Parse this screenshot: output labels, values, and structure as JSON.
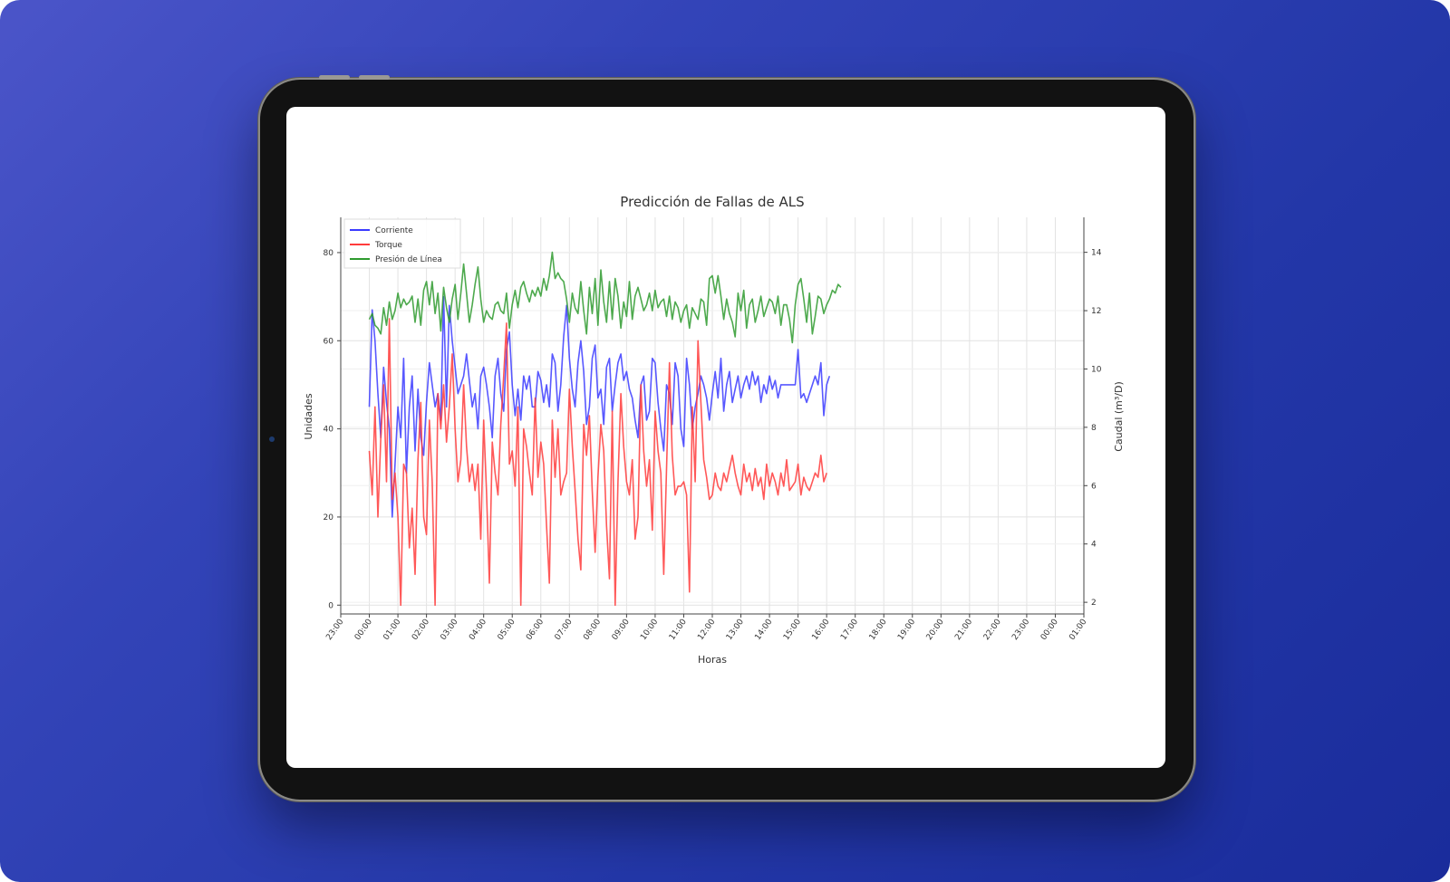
{
  "chart_data": {
    "type": "line",
    "title": "Predicción de Fallas de ALS",
    "xlabel": "Horas",
    "ylabel_left": "Unidades",
    "ylabel_right": "Caudal (m³/D)",
    "x_ticks": [
      "23:00",
      "00:00",
      "01:00",
      "02:00",
      "03:00",
      "04:00",
      "05:00",
      "06:00",
      "07:00",
      "08:00",
      "09:00",
      "10:00",
      "11:00",
      "12:00",
      "13:00",
      "14:00",
      "15:00",
      "16:00",
      "17:00",
      "18:00",
      "19:00",
      "20:00",
      "21:00",
      "22:00",
      "23:00",
      "00:00",
      "01:00"
    ],
    "x_tick_labels": [
      "23:00",
      "00:00",
      "01:00",
      "02:00",
      "03:00",
      "04:00",
      "05:00",
      "06:00",
      "07:00",
      "08:00",
      "09:00",
      "10:00",
      "11:00",
      "12:00",
      "13:00",
      "14:00",
      "15:00",
      "16:00",
      "17:00",
      "18:00",
      "19:00",
      "20:00",
      "21:00",
      "22:00",
      "23:00",
      "00:00",
      "01:00"
    ],
    "ylim_left": [
      -2,
      88
    ],
    "yticks_left": [
      0,
      20,
      40,
      60,
      80
    ],
    "ylim_right": [
      1.6,
      15.2
    ],
    "yticks_right": [
      2,
      4,
      6,
      8,
      10,
      12,
      14
    ],
    "grid": true,
    "legend_position": "top-left",
    "series": [
      {
        "name": "Corriente",
        "color": "#3b3bff",
        "axis": "left",
        "x_start_hour": 1.0,
        "x_step_hour": 0.1,
        "values": [
          45,
          67,
          60,
          48,
          38,
          54,
          46,
          40,
          20,
          32,
          45,
          38,
          56,
          30,
          45,
          52,
          35,
          49,
          38,
          34,
          46,
          55,
          50,
          45,
          48,
          42,
          70,
          45,
          68,
          60,
          54,
          48,
          50,
          52,
          57,
          51,
          45,
          48,
          40,
          52,
          54,
          50,
          45,
          38,
          52,
          56,
          48,
          44,
          58,
          62,
          50,
          43,
          49,
          42,
          52,
          49,
          52,
          45,
          45,
          53,
          51,
          46,
          50,
          45,
          57,
          55,
          44,
          50,
          61,
          68,
          56,
          49,
          45,
          55,
          60,
          53,
          41,
          45,
          56,
          59,
          47,
          49,
          41,
          54,
          56,
          44,
          50,
          55,
          57,
          51,
          53,
          49,
          47,
          42,
          38,
          50,
          52,
          42,
          44,
          56,
          55,
          46,
          40,
          35,
          50,
          48,
          41,
          55,
          52,
          40,
          36,
          56,
          50,
          40,
          45,
          48,
          52,
          50,
          47,
          42,
          48,
          53,
          47,
          56,
          44,
          50,
          53,
          46,
          49,
          52,
          47,
          50,
          52,
          49,
          53,
          50,
          52,
          46,
          50,
          48,
          52,
          49,
          51,
          47,
          50,
          50,
          50,
          50,
          50,
          50,
          58,
          47,
          48,
          46,
          48,
          50,
          52,
          50,
          55,
          43,
          50,
          52
        ]
      },
      {
        "name": "Torque",
        "color": "#ff3b3b",
        "axis": "left",
        "x_start_hour": 1.0,
        "x_step_hour": 0.1,
        "values": [
          35,
          25,
          45,
          20,
          38,
          50,
          28,
          65,
          24,
          30,
          20,
          0,
          32,
          30,
          13,
          22,
          7,
          33,
          46,
          20,
          16,
          42,
          28,
          0,
          48,
          40,
          50,
          37,
          45,
          57,
          40,
          28,
          33,
          50,
          36,
          28,
          32,
          26,
          32,
          15,
          42,
          26,
          5,
          37,
          30,
          25,
          41,
          52,
          64,
          32,
          35,
          27,
          45,
          0,
          40,
          36,
          30,
          25,
          47,
          29,
          37,
          32,
          18,
          5,
          42,
          29,
          40,
          25,
          28,
          30,
          49,
          36,
          26,
          15,
          8,
          41,
          34,
          43,
          26,
          12,
          29,
          41,
          35,
          18,
          6,
          44,
          0,
          28,
          48,
          36,
          28,
          25,
          33,
          15,
          20,
          50,
          35,
          27,
          33,
          17,
          44,
          35,
          30,
          7,
          31,
          55,
          34,
          25,
          27,
          27,
          28,
          25,
          3,
          45,
          28,
          60,
          46,
          33,
          29,
          24,
          25,
          30,
          27,
          26,
          30,
          28,
          31,
          34,
          30,
          27,
          25,
          32,
          28,
          30,
          26,
          31,
          27,
          29,
          24,
          32,
          27,
          30,
          28,
          25,
          30,
          27,
          33,
          26,
          27,
          28,
          32,
          25,
          29,
          27,
          26,
          28,
          30,
          29,
          34,
          28,
          30
        ]
      },
      {
        "name": "Presión de Línea",
        "color": "#2e9a2e",
        "axis": "right",
        "x_start_hour": 1.0,
        "x_step_hour": 0.1,
        "values": [
          11.7,
          11.9,
          11.5,
          11.4,
          11.2,
          12.1,
          11.5,
          12.3,
          11.7,
          12.0,
          12.6,
          12.1,
          12.4,
          12.2,
          12.3,
          12.5,
          11.6,
          12.4,
          11.5,
          12.7,
          13.0,
          12.2,
          13.0,
          11.9,
          12.6,
          11.3,
          12.8,
          12.1,
          11.6,
          12.4,
          12.9,
          11.7,
          12.6,
          13.6,
          12.6,
          11.6,
          12.2,
          12.9,
          13.5,
          12.4,
          11.6,
          12.0,
          11.8,
          11.7,
          12.2,
          12.3,
          12.0,
          11.9,
          12.6,
          11.4,
          12.2,
          12.7,
          12.1,
          12.8,
          13.0,
          12.6,
          12.3,
          12.7,
          12.5,
          12.8,
          12.5,
          13.1,
          12.7,
          13.2,
          14.0,
          13.1,
          13.3,
          13.1,
          13.0,
          12.4,
          11.6,
          12.6,
          12.1,
          11.9,
          13.0,
          12.0,
          11.2,
          12.8,
          11.9,
          13.1,
          11.5,
          13.4,
          12.3,
          11.6,
          13.0,
          11.7,
          13.1,
          12.5,
          11.4,
          12.3,
          11.8,
          13.0,
          11.7,
          12.5,
          12.8,
          12.4,
          12.0,
          12.2,
          12.6,
          12.0,
          12.7,
          12.1,
          12.3,
          12.4,
          11.8,
          12.5,
          11.7,
          12.3,
          12.1,
          11.6,
          12.0,
          12.2,
          11.4,
          12.1,
          11.9,
          11.7,
          12.4,
          12.3,
          11.5,
          13.1,
          13.2,
          12.6,
          13.2,
          12.5,
          11.7,
          12.4,
          11.9,
          11.6,
          11.1,
          12.6,
          12.0,
          12.7,
          11.4,
          12.2,
          12.4,
          11.6,
          12.0,
          12.5,
          11.8,
          12.1,
          12.4,
          12.3,
          11.9,
          12.5,
          11.5,
          12.2,
          12.2,
          11.7,
          10.9,
          12.2,
          12.9,
          13.1,
          12.4,
          11.6,
          12.6,
          11.2,
          11.8,
          12.5,
          12.4,
          11.9,
          12.2,
          12.4,
          12.7,
          12.6,
          12.9,
          12.8
        ]
      }
    ]
  }
}
